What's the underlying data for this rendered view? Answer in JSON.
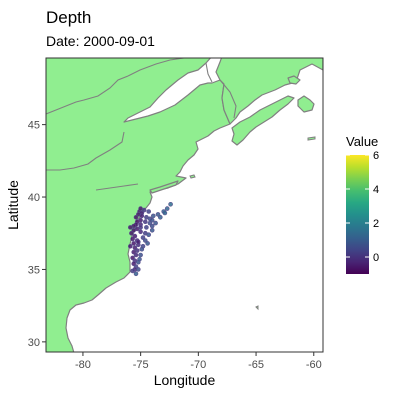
{
  "title": "Depth",
  "subtitle": "Date: 2000-09-01",
  "colors": {
    "land": "#90ee90",
    "coast": "#808080",
    "ocean": "#ffffff",
    "point_edge": "#5a4f8f"
  },
  "chart_data": {
    "type": "scatter",
    "xlabel": "Longitude",
    "ylabel": "Latitude",
    "xlim": [
      -83.2,
      -59.2
    ],
    "ylim": [
      29.3,
      49.6
    ],
    "x_ticks": [
      -80,
      -75,
      -70,
      -65,
      -60
    ],
    "y_ticks": [
      30,
      35,
      40,
      45
    ],
    "x_tick_labels": [
      "-80",
      "-75",
      "-70",
      "-65",
      "-60"
    ],
    "y_tick_labels": [
      "30",
      "35",
      "40",
      "45"
    ],
    "legend": {
      "title": "Value",
      "position": "right",
      "range": [
        -1,
        6
      ],
      "ticks": [
        0,
        2,
        4,
        6
      ],
      "tick_labels": [
        "0",
        "2",
        "4",
        "6"
      ],
      "colormap": "viridis"
    },
    "points": [
      [
        -75.1,
        39.0,
        -0.5
      ],
      [
        -74.9,
        38.9,
        -0.3
      ],
      [
        -74.7,
        39.1,
        0.2
      ],
      [
        -75.2,
        38.8,
        -0.6
      ],
      [
        -74.9,
        38.7,
        -0.4
      ],
      [
        -74.5,
        38.6,
        0.3
      ],
      [
        -74.2,
        38.5,
        0.6
      ],
      [
        -74.0,
        38.4,
        0.8
      ],
      [
        -73.9,
        38.7,
        0.9
      ],
      [
        -73.5,
        38.8,
        1.0
      ],
      [
        -73.0,
        39.0,
        1.2
      ],
      [
        -72.7,
        39.2,
        1.3
      ],
      [
        -72.4,
        39.5,
        1.5
      ],
      [
        -74.3,
        39.0,
        0.4
      ],
      [
        -74.6,
        38.3,
        0.1
      ],
      [
        -75.0,
        38.4,
        -0.5
      ],
      [
        -75.3,
        38.3,
        -0.7
      ],
      [
        -75.4,
        38.1,
        -0.6
      ],
      [
        -75.0,
        38.1,
        -0.3
      ],
      [
        -74.5,
        37.9,
        0.4
      ],
      [
        -74.0,
        38.0,
        0.7
      ],
      [
        -73.7,
        38.2,
        0.9
      ],
      [
        -75.6,
        37.7,
        -0.6
      ],
      [
        -75.3,
        37.8,
        -0.5
      ],
      [
        -75.0,
        37.6,
        -0.2
      ],
      [
        -74.6,
        37.5,
        0.3
      ],
      [
        -74.8,
        37.2,
        0.4
      ],
      [
        -75.5,
        37.3,
        -0.5
      ],
      [
        -75.7,
        37.1,
        -0.6
      ],
      [
        -75.3,
        37.0,
        -0.3
      ],
      [
        -75.6,
        36.8,
        -0.6
      ],
      [
        -75.2,
        36.7,
        -0.1
      ],
      [
        -74.8,
        36.6,
        0.5
      ],
      [
        -75.5,
        36.5,
        -0.4
      ],
      [
        -75.3,
        36.3,
        0.0
      ],
      [
        -75.6,
        36.2,
        -0.5
      ],
      [
        -75.4,
        36.0,
        -0.2
      ],
      [
        -75.0,
        36.0,
        0.8
      ],
      [
        -74.9,
        36.4,
        0.8
      ],
      [
        -75.7,
        35.8,
        -0.6
      ],
      [
        -75.5,
        35.6,
        -0.1
      ],
      [
        -75.2,
        35.5,
        0.9
      ],
      [
        -75.6,
        35.4,
        -0.5
      ],
      [
        -75.4,
        35.2,
        0.3
      ],
      [
        -75.1,
        35.7,
        1.0
      ],
      [
        -75.5,
        35.0,
        -0.2
      ],
      [
        -75.2,
        35.0,
        0.7
      ],
      [
        -75.7,
        34.9,
        0.2
      ],
      [
        -75.4,
        34.7,
        1.2
      ],
      [
        -75.6,
        38.0,
        -0.6
      ],
      [
        -75.8,
        37.5,
        -0.6
      ],
      [
        -74.3,
        37.4,
        0.9
      ],
      [
        -74.6,
        37.0,
        0.7
      ],
      [
        -74.4,
        36.8,
        1.0
      ],
      [
        -75.0,
        37.9,
        0.0
      ],
      [
        -74.2,
        38.2,
        0.7
      ],
      [
        -73.3,
        38.6,
        1.2
      ],
      [
        -72.9,
        38.9,
        1.4
      ],
      [
        -75.4,
        38.6,
        -0.7
      ],
      [
        -75.0,
        39.2,
        -0.6
      ],
      [
        -75.9,
        36.6,
        -0.5
      ],
      [
        -75.9,
        37.9,
        -0.6
      ],
      [
        -75.2,
        36.9,
        -0.4
      ],
      [
        -74.0,
        37.7,
        1.0
      ]
    ]
  }
}
